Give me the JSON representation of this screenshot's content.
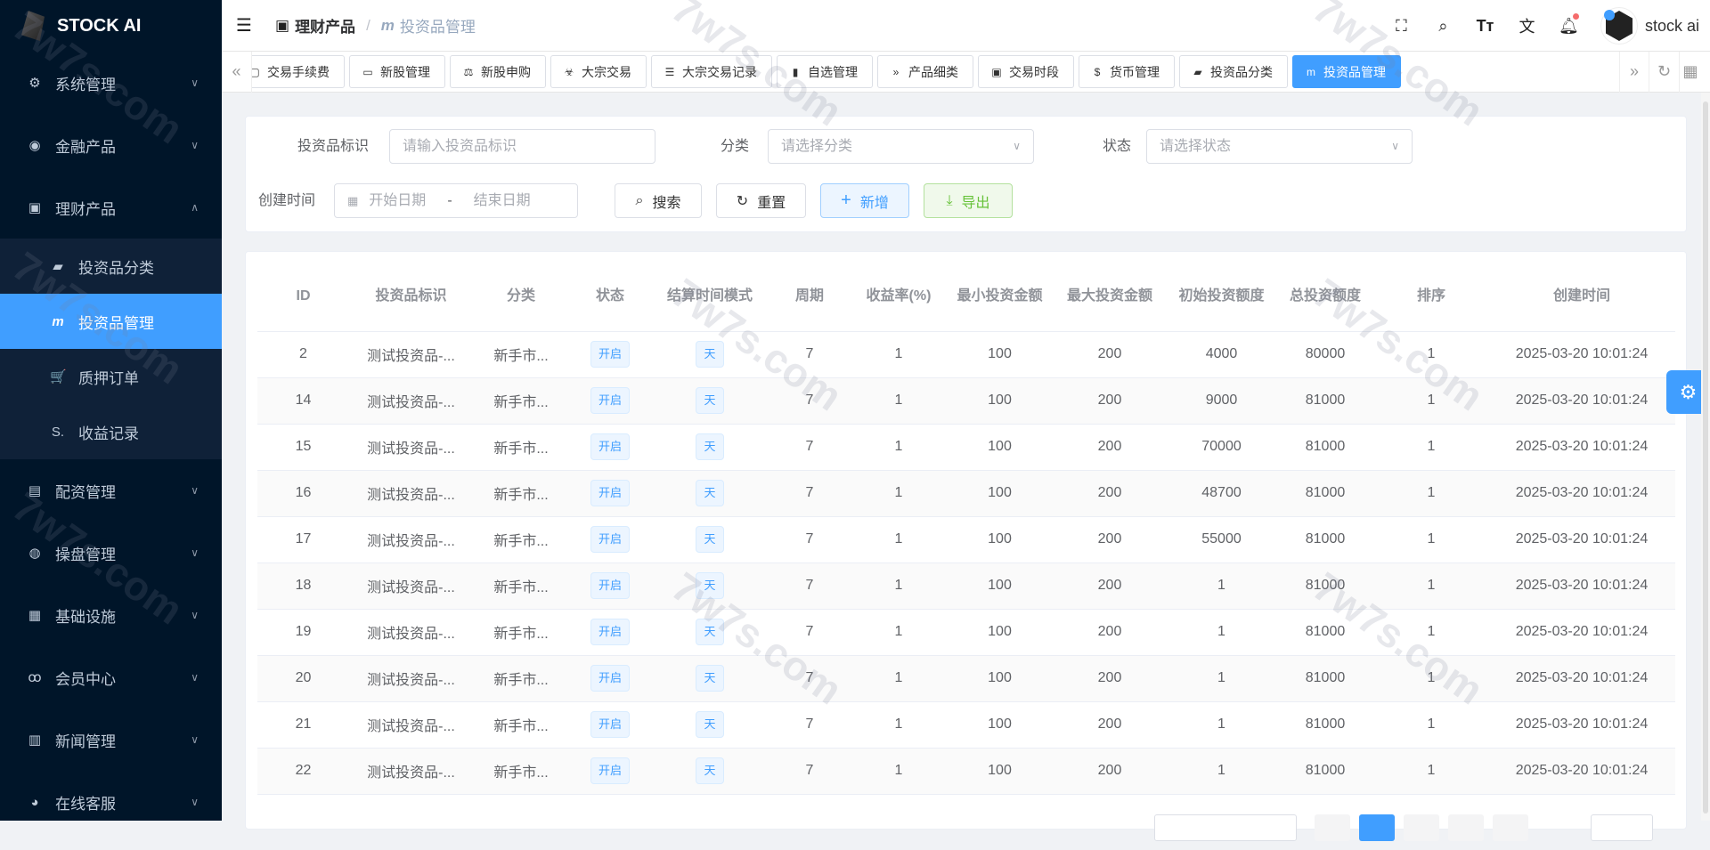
{
  "app": {
    "title": "STOCK AI"
  },
  "sidebar": {
    "items": [
      {
        "label": "系统管理",
        "icon": "gear-icon",
        "glyph": "⚙"
      },
      {
        "label": "金融产品",
        "icon": "coin-icon",
        "glyph": "◉"
      },
      {
        "label": "理财产品",
        "icon": "box-icon",
        "glyph": "▣",
        "expanded": true,
        "children": [
          {
            "label": "投资品分类",
            "icon": "folder-open-icon",
            "glyph": "▰"
          },
          {
            "label": "投资品管理",
            "icon": "m-icon",
            "glyph": "m",
            "active": true
          },
          {
            "label": "质押订单",
            "icon": "cart-icon",
            "glyph": "🛒"
          },
          {
            "label": "收益记录",
            "icon": "s-icon",
            "glyph": "S."
          }
        ]
      },
      {
        "label": "配资管理",
        "icon": "id-card-icon",
        "glyph": "▤"
      },
      {
        "label": "操盘管理",
        "icon": "globe-icon",
        "glyph": "◍"
      },
      {
        "label": "基础设施",
        "icon": "building-icon",
        "glyph": "▦"
      },
      {
        "label": "会员中心",
        "icon": "bicycle-icon",
        "glyph": "ꝏ"
      },
      {
        "label": "新闻管理",
        "icon": "book-icon",
        "glyph": "▥"
      },
      {
        "label": "在线客服",
        "icon": "github-icon",
        "glyph": "◕"
      }
    ]
  },
  "header": {
    "breadcrumb": [
      "理财产品",
      "投资品管理"
    ],
    "breadcrumb_sep": "/",
    "username": "stock ai"
  },
  "tags": [
    {
      "label": "交易手续费",
      "glyph": "▢"
    },
    {
      "label": "新股管理",
      "glyph": "▭"
    },
    {
      "label": "新股申购",
      "glyph": "⚖"
    },
    {
      "label": "大宗交易",
      "glyph": "☣"
    },
    {
      "label": "大宗交易记录",
      "glyph": "☰"
    },
    {
      "label": "自选管理",
      "glyph": "▮"
    },
    {
      "label": "产品细类",
      "glyph": "»"
    },
    {
      "label": "交易时段",
      "glyph": "▣"
    },
    {
      "label": "货币管理",
      "glyph": "$"
    },
    {
      "label": "投资品分类",
      "glyph": "▰"
    },
    {
      "label": "投资品管理",
      "glyph": "m",
      "active": true
    }
  ],
  "search": {
    "id_label": "投资品标识",
    "id_placeholder": "请输入投资品标识",
    "category_label": "分类",
    "category_placeholder": "请选择分类",
    "status_label": "状态",
    "status_placeholder": "请选择状态",
    "time_label": "创建时间",
    "start_placeholder": "开始日期",
    "range_sep": "-",
    "end_placeholder": "结束日期",
    "search_btn": "搜索",
    "reset_btn": "重置",
    "add_btn": "新增",
    "export_btn": "导出"
  },
  "table": {
    "columns": [
      "ID",
      "投资品标识",
      "分类",
      "状态",
      "结算时间模式",
      "周期",
      "收益率(%)",
      "最小投资金额",
      "最大投资金额",
      "初始投资额度",
      "总投资额度",
      "排序",
      "创建时间"
    ],
    "rows": [
      [
        "2",
        "测试投资品-...",
        "新手市...",
        "开启",
        "天",
        "7",
        "1",
        "100",
        "200",
        "4000",
        "80000",
        "1",
        "2025-03-20 10:01:24"
      ],
      [
        "14",
        "测试投资品-...",
        "新手市...",
        "开启",
        "天",
        "7",
        "1",
        "100",
        "200",
        "9000",
        "81000",
        "1",
        "2025-03-20 10:01:24"
      ],
      [
        "15",
        "测试投资品-...",
        "新手市...",
        "开启",
        "天",
        "7",
        "1",
        "100",
        "200",
        "70000",
        "81000",
        "1",
        "2025-03-20 10:01:24"
      ],
      [
        "16",
        "测试投资品-...",
        "新手市...",
        "开启",
        "天",
        "7",
        "1",
        "100",
        "200",
        "48700",
        "81000",
        "1",
        "2025-03-20 10:01:24"
      ],
      [
        "17",
        "测试投资品-...",
        "新手市...",
        "开启",
        "天",
        "7",
        "1",
        "100",
        "200",
        "55000",
        "81000",
        "1",
        "2025-03-20 10:01:24"
      ],
      [
        "18",
        "测试投资品-...",
        "新手市...",
        "开启",
        "天",
        "7",
        "1",
        "100",
        "200",
        "1",
        "81000",
        "1",
        "2025-03-20 10:01:24"
      ],
      [
        "19",
        "测试投资品-...",
        "新手市...",
        "开启",
        "天",
        "7",
        "1",
        "100",
        "200",
        "1",
        "81000",
        "1",
        "2025-03-20 10:01:24"
      ],
      [
        "20",
        "测试投资品-...",
        "新手市...",
        "开启",
        "天",
        "7",
        "1",
        "100",
        "200",
        "1",
        "81000",
        "1",
        "2025-03-20 10:01:24"
      ],
      [
        "21",
        "测试投资品-...",
        "新手市...",
        "开启",
        "天",
        "7",
        "1",
        "100",
        "200",
        "1",
        "81000",
        "1",
        "2025-03-20 10:01:24"
      ],
      [
        "22",
        "测试投资品-...",
        "新手市...",
        "开启",
        "天",
        "7",
        "1",
        "100",
        "200",
        "1",
        "81000",
        "1",
        "2025-03-20 10:01:24"
      ]
    ]
  },
  "watermark": "7w7s.com",
  "colors": {
    "primary": "#409eff",
    "sidebar_bg": "#001529",
    "success": "#67c23a",
    "notification_dot": "#f56c6c"
  }
}
